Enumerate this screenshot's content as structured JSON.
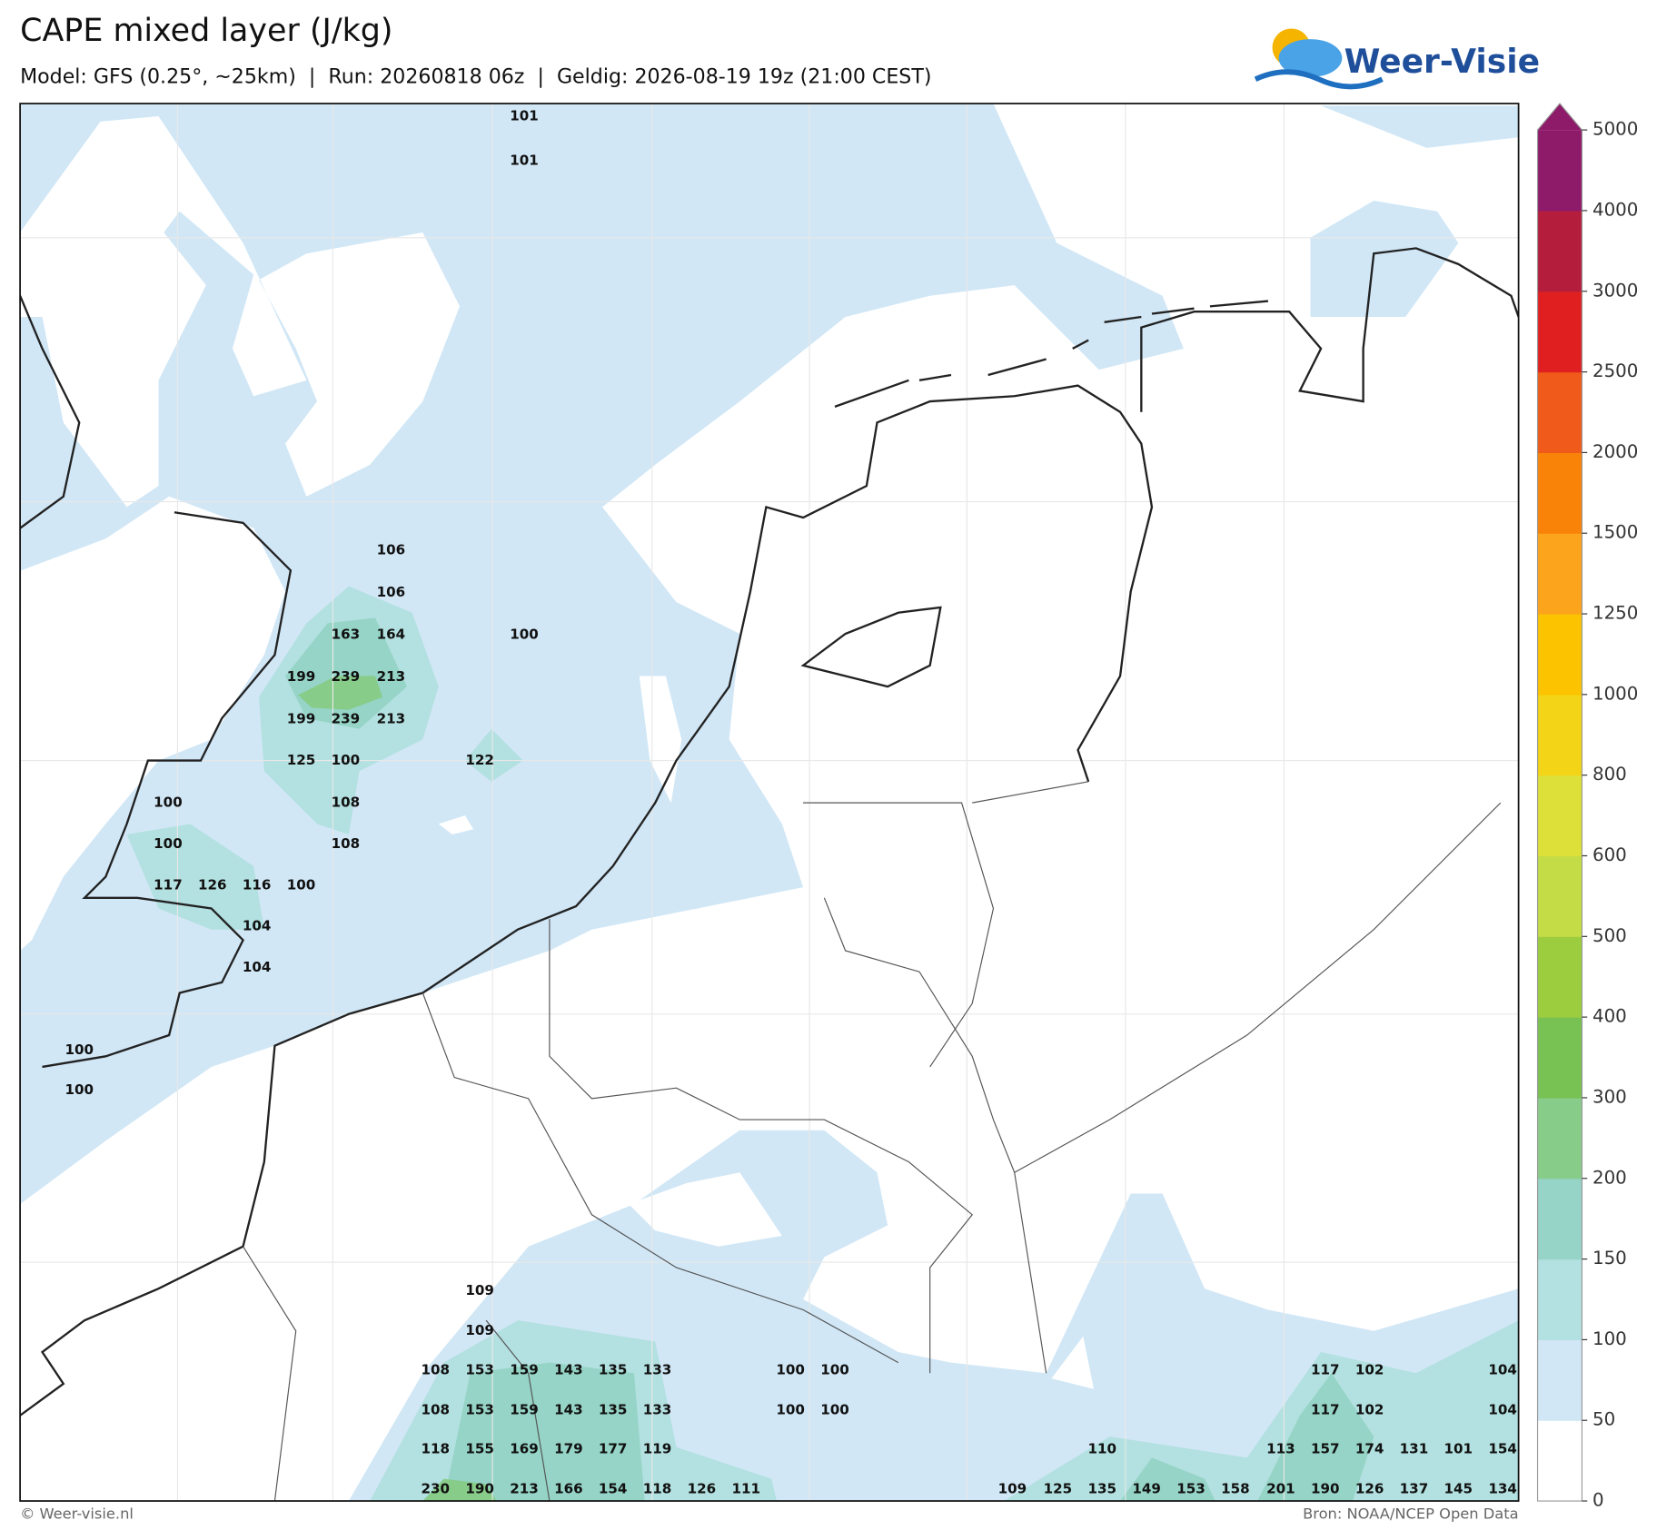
{
  "header": {
    "title": "CAPE mixed layer (J/kg)",
    "subtitle": "Model: GFS (0.25°, ~25km)  |  Run: 20260818 06z  |  Geldig: 2026-08-19 19z (21:00 CEST)",
    "logo": "Weer-Visie"
  },
  "map": {
    "labels": [
      101,
      101,
      106,
      106,
      163,
      164,
      100,
      199,
      239,
      213,
      199,
      239,
      213,
      125,
      100,
      122,
      100,
      108,
      100,
      108,
      117,
      126,
      116,
      100,
      104,
      104,
      100,
      100,
      109,
      109,
      108,
      153,
      159,
      143,
      135,
      133,
      100,
      100,
      117,
      102,
      104,
      108,
      153,
      159,
      143,
      135,
      133,
      100,
      100,
      117,
      102,
      104,
      118,
      155,
      169,
      179,
      177,
      119,
      110,
      113,
      157,
      174,
      131,
      101,
      154,
      230,
      190,
      213,
      166,
      154,
      118,
      126,
      111,
      109,
      125,
      135,
      149,
      153,
      158,
      201,
      190,
      126,
      137,
      145,
      134
    ]
  },
  "colorbar": {
    "ticks": [
      0,
      50,
      100,
      150,
      200,
      300,
      400,
      500,
      600,
      800,
      1000,
      1250,
      1500,
      2000,
      2500,
      3000,
      4000,
      5000
    ],
    "colors": [
      "#ffffff",
      "#d1e7f6",
      "#b3e0e0",
      "#95d4c6",
      "#88cc8a",
      "#78c153",
      "#9bcd3f",
      "#c4dc45",
      "#dee03a",
      "#f3d416",
      "#fbc300",
      "#fca41c",
      "#f98309",
      "#f05a1a",
      "#e02020",
      "#b41e3c",
      "#8e1a6a"
    ]
  },
  "footer": {
    "left": "© Weer-visie.nl",
    "right": "Bron: NOAA/NCEP Open Data"
  }
}
